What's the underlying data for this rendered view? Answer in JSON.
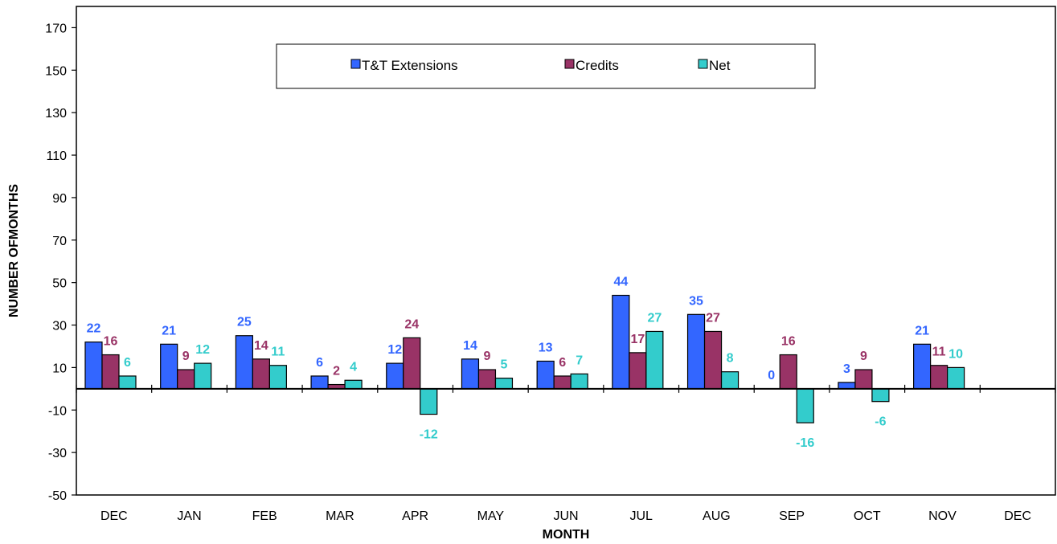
{
  "chart_data": {
    "type": "bar",
    "xlabel": "MONTH",
    "ylabel": "NUMBER OFMONTHS",
    "ylim": [
      -50,
      180
    ],
    "yticks": [
      -50,
      -30,
      -10,
      10,
      30,
      50,
      70,
      90,
      110,
      130,
      150,
      170
    ],
    "categories": [
      "DEC",
      "JAN",
      "FEB",
      "MAR",
      "APR",
      "MAY",
      "JUN",
      "JUL",
      "AUG",
      "SEP",
      "OCT",
      "NOV",
      "DEC"
    ],
    "legend_position": "top-center",
    "grid": false,
    "series": [
      {
        "name": "T&T Extensions",
        "color": "#3366ff",
        "label_color": "#3366ff",
        "values": [
          22,
          21,
          25,
          6,
          12,
          14,
          13,
          44,
          35,
          0,
          3,
          21,
          null
        ]
      },
      {
        "name": "Credits",
        "color": "#993366",
        "label_color": "#993366",
        "values": [
          16,
          9,
          14,
          2,
          24,
          9,
          6,
          17,
          27,
          16,
          9,
          11,
          null
        ]
      },
      {
        "name": "Net",
        "color": "#33cccc",
        "label_color": "#33cccc",
        "values": [
          6,
          12,
          11,
          4,
          -12,
          5,
          7,
          27,
          8,
          -16,
          -6,
          10,
          null
        ]
      }
    ]
  }
}
